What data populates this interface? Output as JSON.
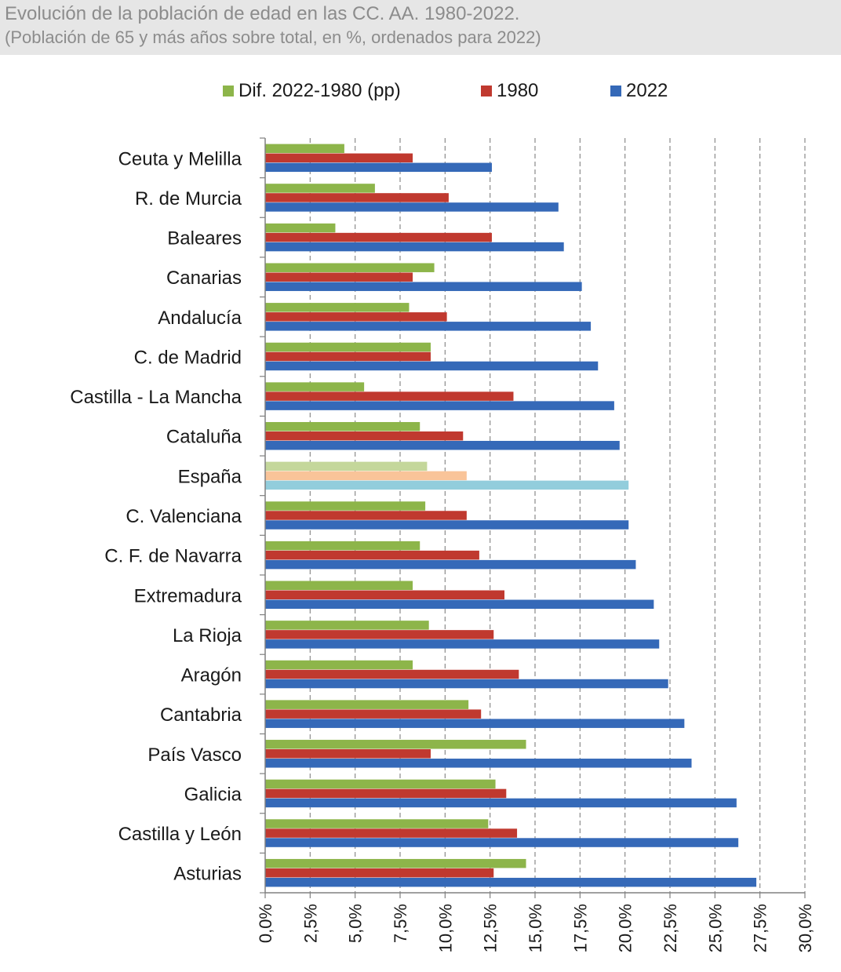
{
  "header": {
    "title": "Evolución de la población de edad en las CC. AA. 1980-2022.",
    "subtitle": " (Población de 65 y más años sobre total, en %, ordenados para 2022)"
  },
  "chart_data": {
    "type": "bar",
    "orientation": "horizontal",
    "title": "Evolución de la población de edad en las CC. AA. 1980-2022.",
    "subtitle": "(Población de 65 y más años sobre total, en %, ordenados para 2022)",
    "xlabel": "",
    "ylabel": "",
    "xlim": [
      0,
      30
    ],
    "x_ticks": [
      0,
      2.5,
      5,
      7.5,
      10,
      12.5,
      15,
      17.5,
      20,
      22.5,
      25,
      27.5,
      30
    ],
    "x_tick_labels": [
      "0,0%",
      "2,5%",
      "5,0%",
      "7,5%",
      "10,0%",
      "12,5%",
      "15,0%",
      "17,5%",
      "20,0%",
      "22,5%",
      "25,0%",
      "27,5%",
      "30,0%"
    ],
    "grid": "vertical-dashed",
    "legend_position": "top",
    "highlight_category": "España",
    "categories": [
      "Ceuta y Melilla",
      "R. de Murcia",
      "Baleares",
      "Canarias",
      "Andalucía",
      "C. de Madrid",
      "Castilla - La Mancha",
      "Cataluña",
      "España",
      "C. Valenciana",
      "C. F. de Navarra",
      "Extremadura",
      "La Rioja",
      "Aragón",
      "Cantabria",
      "País Vasco",
      "Galicia",
      "Castilla y León",
      "Asturias"
    ],
    "series": [
      {
        "name": "Dif. 2022-1980 (pp)",
        "color": "#8db54a",
        "highlight_color": "#c4d79b",
        "values": [
          4.4,
          6.1,
          3.9,
          9.4,
          8.0,
          9.2,
          5.5,
          8.6,
          9.0,
          8.9,
          8.6,
          8.2,
          9.1,
          8.2,
          11.3,
          14.5,
          12.8,
          12.4,
          14.5
        ]
      },
      {
        "name": "1980",
        "color": "#c0392f",
        "highlight_color": "#f9c499",
        "values": [
          8.2,
          10.2,
          12.6,
          8.2,
          10.1,
          9.2,
          13.8,
          11.0,
          11.2,
          11.2,
          11.9,
          13.3,
          12.7,
          14.1,
          12.0,
          9.2,
          13.4,
          14.0,
          12.7
        ]
      },
      {
        "name": "2022",
        "color": "#3569b8",
        "highlight_color": "#92cddc",
        "values": [
          12.6,
          16.3,
          16.6,
          17.6,
          18.1,
          18.5,
          19.4,
          19.7,
          20.2,
          20.2,
          20.6,
          21.6,
          21.9,
          22.4,
          23.3,
          23.7,
          26.2,
          26.3,
          27.3
        ]
      }
    ]
  }
}
